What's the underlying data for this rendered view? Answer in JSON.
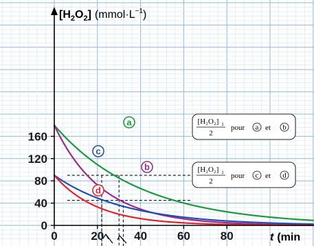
{
  "chart_data": {
    "type": "line",
    "ylabel_prefix": "[H",
    "ylabel_sub1": "2",
    "ylabel_mid": "O",
    "ylabel_sub2": "2",
    "ylabel_suffix": "]",
    "yunit": "(mmol·L",
    "yunit_exp": "−1",
    "yunit_close": ")",
    "xlabel": "t",
    "xunit": "(min",
    "xlim": [
      0,
      115
    ],
    "ylim": [
      0,
      180
    ],
    "x_ticks": [
      0,
      20,
      40,
      60,
      80
    ],
    "y_ticks": [
      0,
      40,
      80,
      120,
      160
    ],
    "grid": true,
    "series": [
      {
        "name": "a",
        "color": "#1a9a3a",
        "x0": 0,
        "y0": 180,
        "tau": 40
      },
      {
        "name": "b",
        "color": "#9b2a8a",
        "x0": 0,
        "y0": 180,
        "tau": 22
      },
      {
        "name": "c",
        "color": "#1f4fb0",
        "x0": 0,
        "y0": 90,
        "tau": 33
      },
      {
        "name": "d",
        "color": "#e0232d",
        "x0": 0,
        "y0": 90,
        "tau": 20
      }
    ],
    "reference_lines": [
      {
        "y": 90,
        "x_end": 300
      },
      {
        "y": 45,
        "x_end": 300
      }
    ],
    "drop_lines": [
      {
        "x": 22,
        "y": 90
      },
      {
        "x": 30,
        "y": 90
      },
      {
        "x": 22,
        "y": 45
      },
      {
        "x": 32,
        "y": 45
      }
    ],
    "annotations": [
      {
        "numerator": "[H₂O₂]",
        "num_sub": "i",
        "denominator": "2",
        "text": "pour",
        "label1": "a",
        "conj": "et",
        "label2": "b"
      },
      {
        "numerator": "[H₂O₂]",
        "num_sub": "i",
        "denominator": "2",
        "text": "pour",
        "label1": "c",
        "conj": "et",
        "label2": "d"
      }
    ],
    "colors": {
      "grid_major": "#8fb7dd",
      "grid_minor": "#d4e6f5",
      "axis": "#000000"
    }
  }
}
